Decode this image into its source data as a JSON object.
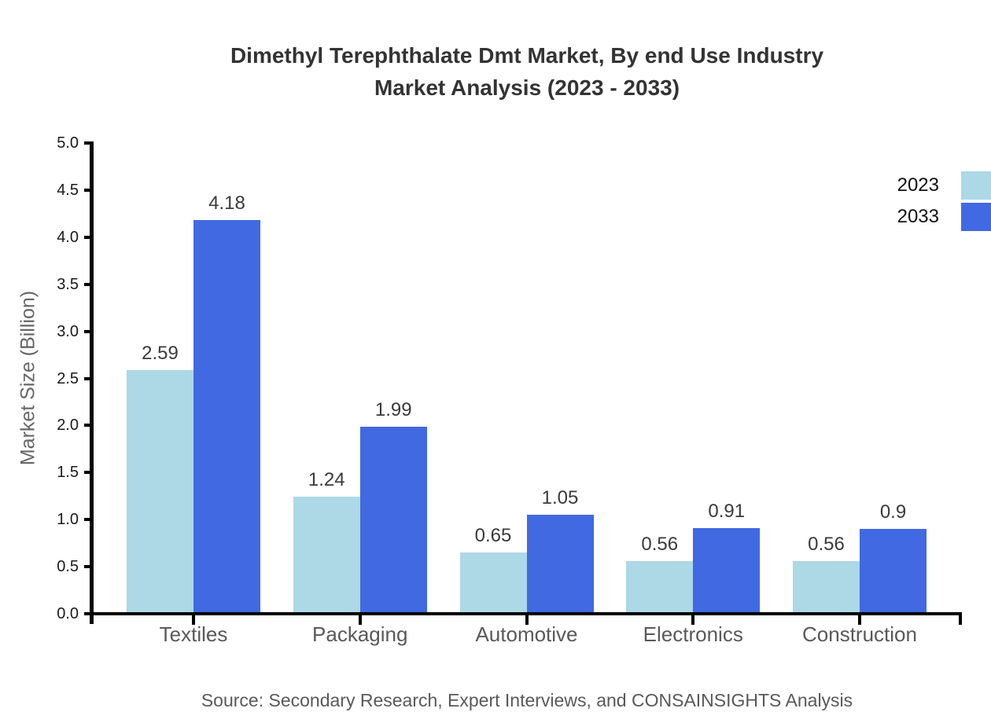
{
  "header": {
    "title_line1": "Dimethyl Terephthalate Dmt Market, By end Use Industry",
    "title_line2": "Market Analysis (2023 - 2033)"
  },
  "chart_data": {
    "type": "bar",
    "title": "Dimethyl Terephthalate Dmt Market, By end Use Industry Market Analysis (2023 - 2033)",
    "categories": [
      "Textiles",
      "Packaging",
      "Automotive",
      "Electronics",
      "Construction"
    ],
    "series": [
      {
        "name": "2023",
        "color": "#add8e6",
        "values": [
          2.59,
          1.24,
          0.65,
          0.56,
          0.56
        ]
      },
      {
        "name": "2033",
        "color": "#4169e1",
        "values": [
          4.18,
          1.99,
          1.05,
          0.91,
          0.9
        ]
      }
    ],
    "xlabel": "",
    "ylabel": "Market Size (Billion)",
    "ylim": [
      0,
      5
    ],
    "ytick_labels": [
      "0.0",
      "0.5",
      "1.0",
      "1.5",
      "2.0",
      "2.5",
      "3.0",
      "3.5",
      "4.0",
      "4.5",
      "5.0"
    ],
    "grid": false,
    "legend_position": "top-right",
    "bar_value_labels_shown": true
  },
  "footer": {
    "source": "Source: Secondary Research, Expert Interviews, and CONSAINSIGHTS Analysis"
  },
  "colors": {
    "series_2023": "#add8e6",
    "series_2033": "#4169e1",
    "axis": "#000000",
    "title_text": "#333333",
    "tick_label_text": "#1a1a1a",
    "category_text": "#595959",
    "muted_text": "#666666",
    "background": "#ffffff"
  }
}
